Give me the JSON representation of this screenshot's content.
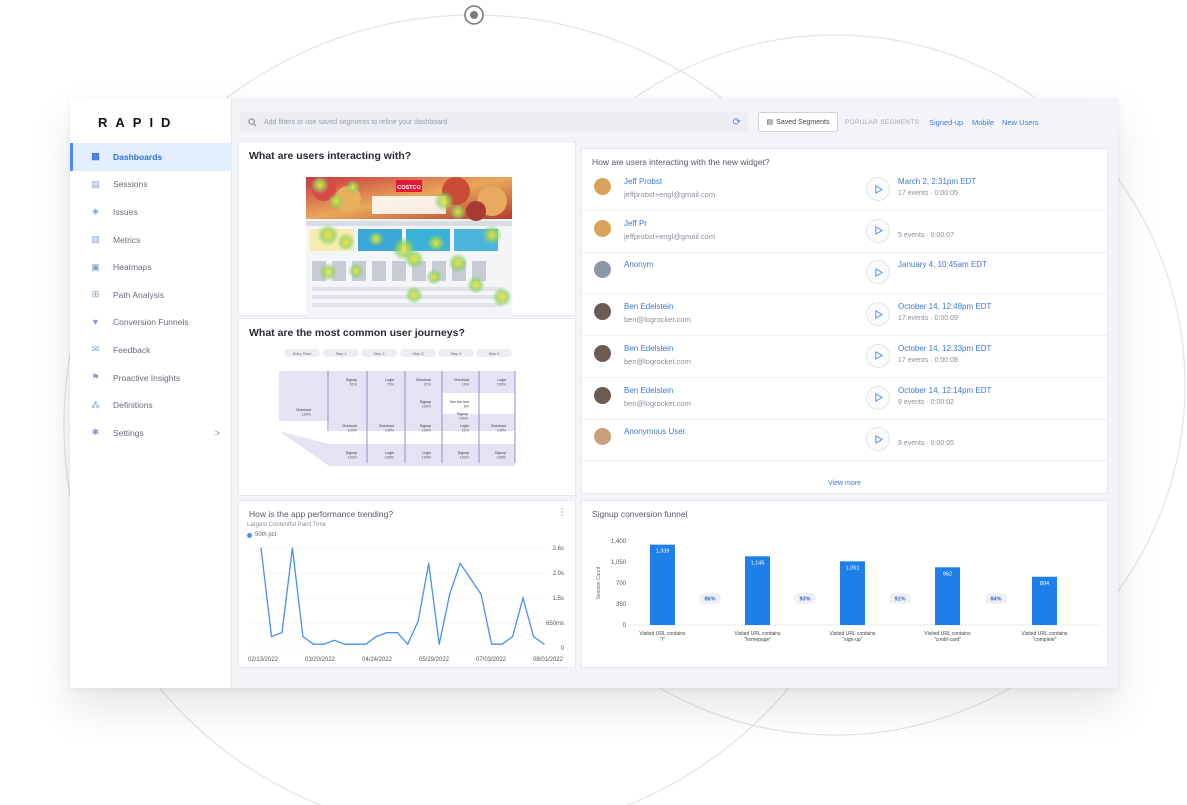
{
  "app": {
    "logo": "RAPID"
  },
  "search": {
    "placeholder": "Add filters or use saved segments to refine your dashboard"
  },
  "topbar": {
    "saved_segments": "Saved Segments",
    "popular_label": "POPULAR SEGMENTS:",
    "popular": [
      "Signed-up",
      "Mobile",
      "New Users"
    ]
  },
  "sidebar": {
    "items": [
      {
        "label": "Dashboards",
        "icon": "dashboard-icon",
        "active": true
      },
      {
        "label": "Sessions",
        "icon": "sessions-icon"
      },
      {
        "label": "Issues",
        "icon": "issues-icon"
      },
      {
        "label": "Metrics",
        "icon": "metrics-icon"
      },
      {
        "label": "Heatmaps",
        "icon": "heatmaps-icon"
      },
      {
        "label": "Path Analysis",
        "icon": "path-analysis-icon"
      },
      {
        "label": "Conversion Funnels",
        "icon": "funnel-icon"
      },
      {
        "label": "Feedback",
        "icon": "feedback-icon"
      },
      {
        "label": "Proactive Insights",
        "icon": "insights-icon"
      },
      {
        "label": "Definitions",
        "icon": "definitions-icon"
      },
      {
        "label": "Settings",
        "icon": "settings-icon",
        "chevron": ">"
      }
    ]
  },
  "heatmap_panel": {
    "title": "What are users interacting with?",
    "site_logo": "COSTCO"
  },
  "journeys_panel": {
    "title": "What are the most common user journeys?",
    "steps": [
      "Entry Point",
      "Step 1",
      "Step 2",
      "Step 3",
      "Step 4",
      "Step 5"
    ],
    "nodes": [
      {
        "label": "Checkout",
        "pct": "100%"
      },
      {
        "label": "Signup",
        "pct": "51%"
      },
      {
        "label": "Login",
        "pct": "70%"
      },
      {
        "label": "Checkout",
        "pct": "21%"
      },
      {
        "label": "Checkout",
        "pct": "19%"
      },
      {
        "label": "Login",
        "pct": "100%"
      },
      {
        "label": "Checkout",
        "pct": "100%"
      },
      {
        "label": "Checkout",
        "pct": "100%"
      },
      {
        "label": "Signup",
        "pct": "100%"
      },
      {
        "label": "Login",
        "pct": "21%"
      },
      {
        "label": "Checkout",
        "pct": "100%"
      },
      {
        "label": "Signup",
        "pct": "100%"
      },
      {
        "label": "Login",
        "pct": "100%"
      },
      {
        "label": "Login",
        "pct": "100%"
      },
      {
        "label": "Signup",
        "pct": "100%"
      },
      {
        "label": "Signup",
        "pct": "100%"
      },
      {
        "label": "Signup",
        "pct": "100%"
      },
      {
        "label": "Signup",
        "pct": "100%"
      },
      {
        "label": "See the rest",
        "pct": "8%"
      }
    ]
  },
  "sessions_panel": {
    "title": "How are users interacting with the new widget?",
    "sessions": [
      {
        "name": "Jeff Probst",
        "email": "jeffprobst+engl@gmail.com",
        "date": "March 2, 2:31pm EDT",
        "meta": "17 events · 0:00:05",
        "avatar": "cat-avatar-icon",
        "avatar_color": "#d9a45a"
      },
      {
        "name": "Jeff Pr",
        "email": "jeffprobst+engl@gmail.com",
        "date": "",
        "meta": "5 events · 0:00:07",
        "avatar": "cat-avatar-icon",
        "avatar_color": "#d9a45a"
      },
      {
        "name": "Anonym",
        "email": "",
        "date": "January 4, 10:45am EDT",
        "meta": "",
        "avatar": "robot-avatar-icon",
        "avatar_color": "#8c96a5"
      },
      {
        "name": "Ben Edelstein",
        "email": "ben@logrocket.com",
        "date": "October 14, 12:48pm EDT",
        "meta": "17 events · 0:00:09",
        "avatar": "person-avatar-icon",
        "avatar_color": "#6b5b53"
      },
      {
        "name": "Ben Edelstein",
        "email": "ben@logrocket.com",
        "date": "October 14, 12:33pm EDT",
        "meta": "17 events · 0:00:08",
        "avatar": "person-avatar-icon",
        "avatar_color": "#6b5b53"
      },
      {
        "name": "Ben Edelstein",
        "email": "ben@logrocket.com",
        "date": "October 14, 12:14pm EDT",
        "meta": "9 events · 0:00:02",
        "avatar": "person-avatar-icon",
        "avatar_color": "#6b5b53"
      },
      {
        "name": "Anonymous User",
        "email": "",
        "date": "",
        "meta": "9 events · 0:00:05",
        "avatar": "box-avatar-icon",
        "avatar_color": "#c8a07a"
      }
    ],
    "view_more": "View more"
  },
  "perf_panel": {
    "title": "How is the app performance trending?",
    "subtitle": "Largest Contentful Paint Time",
    "legend": "50th pct"
  },
  "funnel_panel": {
    "title": "Signup conversion funnel"
  },
  "chart_data": [
    {
      "type": "line",
      "title": "How is the app performance trending?",
      "subtitle": "Largest Contentful Paint Time",
      "series": [
        {
          "name": "50th pct",
          "values": [
            2.6,
            0.3,
            0.4,
            2.6,
            0.3,
            0.1,
            0.1,
            0.2,
            0.1,
            0.1,
            0.1,
            0.3,
            0.4,
            0.4,
            0.1,
            0.7,
            2.2,
            0.1,
            1.4,
            2.2,
            1.8,
            1.4,
            0.1,
            0.1,
            0.3,
            1.3,
            0.3,
            0.1
          ]
        }
      ],
      "x_ticks": [
        "02/13/2022",
        "03/20/2022",
        "04/24/2022",
        "05/29/2022",
        "07/03/2022",
        "08/01/2022"
      ],
      "y_ticks": [
        "2.6s",
        "2.0s",
        "1.5s",
        "650ms",
        "0"
      ],
      "ylim": [
        0,
        2.6
      ]
    },
    {
      "type": "bar",
      "title": "Signup conversion funnel",
      "ylabel": "Session Count",
      "categories": [
        "Visited URL contains \"/\"",
        "Visited URL contains \"homepage\"",
        "Visited URL contains \"sign-up\"",
        "Visited URL contains \"credit-card\"",
        "Visited URL contains \"complete\""
      ],
      "values": [
        1339,
        1145,
        1061,
        962,
        804
      ],
      "conversion": [
        "86%",
        "93%",
        "91%",
        "84%"
      ],
      "y_ticks": [
        "1,400",
        "1,050",
        "700",
        "350",
        "0"
      ],
      "ylim": [
        0,
        1400
      ],
      "bar_color": "#1f7fe8"
    }
  ]
}
